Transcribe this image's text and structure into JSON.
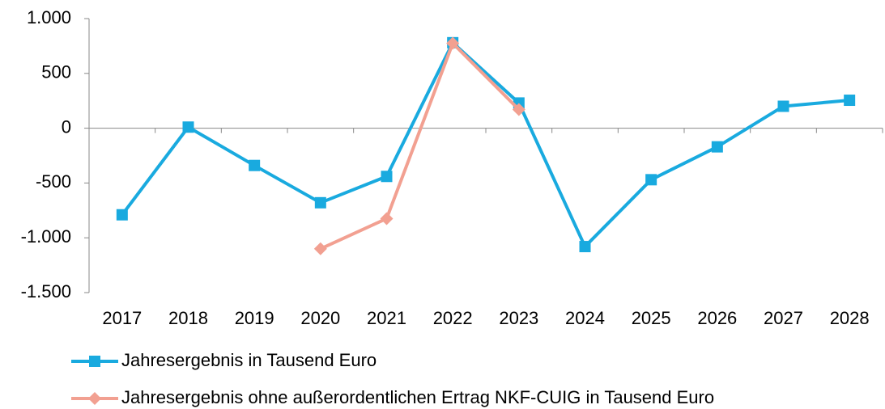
{
  "chart_data": {
    "type": "line",
    "categories": [
      "2017",
      "2018",
      "2019",
      "2020",
      "2021",
      "2022",
      "2023",
      "2024",
      "2025",
      "2026",
      "2027",
      "2028"
    ],
    "series": [
      {
        "name": "Jahresergebnis in Tausend Euro",
        "color": "#19aadf",
        "marker": "square",
        "values": [
          -790,
          10,
          -340,
          -680,
          -440,
          780,
          230,
          -1080,
          -470,
          -170,
          200,
          255
        ]
      },
      {
        "name": "Jahresergebnis ohne außerordentlichen Ertrag NKF-CUIG in Tausend Euro",
        "color": "#f2a091",
        "marker": "diamond",
        "values": [
          null,
          null,
          null,
          -1100,
          -825,
          775,
          170,
          null,
          null,
          null,
          null,
          null
        ]
      }
    ],
    "ylim": [
      -1500,
      1000
    ],
    "yticks": [
      {
        "value": -1500,
        "label": "-1.500"
      },
      {
        "value": -1000,
        "label": "-1.000"
      },
      -500,
      0,
      500,
      {
        "value": 1000,
        "label": "1.000"
      }
    ],
    "grid": false
  }
}
